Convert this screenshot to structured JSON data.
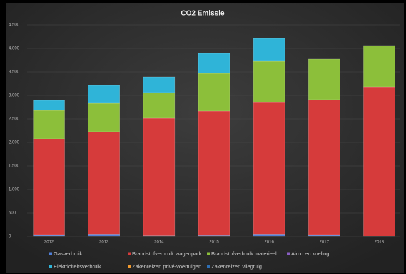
{
  "chart_data": {
    "type": "stacked_bar",
    "title": "CO2 Emissie",
    "categories": [
      "2012",
      "2013",
      "2014",
      "2015",
      "2016",
      "2017",
      "2018"
    ],
    "series": [
      {
        "name": "Gasverbruik",
        "color": "#4f7fd9",
        "values": [
          30,
          40,
          20,
          25,
          40,
          30,
          0
        ]
      },
      {
        "name": "Brandstofverbruik wagenpark",
        "color": "#d63b3b",
        "values": [
          2046,
          2187,
          2495,
          2642,
          2808,
          2879,
          3182
        ]
      },
      {
        "name": "Brandstofverbruik materieel",
        "color": "#8cbf3a",
        "values": [
          606,
          606,
          546,
          803,
          879,
          864,
          879
        ]
      },
      {
        "name": "Airco en koeling",
        "color": "#8a5fc4",
        "values": [
          0,
          0,
          0,
          0,
          0,
          0,
          0
        ]
      },
      {
        "name": "Elektriciteitsverbruik",
        "color": "#2fb4d8",
        "values": [
          212,
          379,
          333,
          424,
          485,
          0,
          0
        ]
      },
      {
        "name": "Zakenreizen privé-voertuigen",
        "color": "#f29a2e",
        "values": [
          0,
          0,
          0,
          0,
          0,
          0,
          0
        ]
      },
      {
        "name": "Zakenreizen vliegtuig",
        "color": "#2e6fb5",
        "values": [
          0,
          0,
          0,
          0,
          0,
          0,
          0
        ]
      }
    ],
    "ylim": [
      0,
      4500
    ],
    "yticks": [
      0,
      500,
      {
        "value": 1000,
        "label": "1.000"
      },
      {
        "value": 1500,
        "label": "1.500"
      },
      {
        "value": 2000,
        "label": "2.000"
      },
      {
        "value": 2500,
        "label": "2.500"
      },
      {
        "value": 3000,
        "label": "3.000"
      },
      {
        "value": 3500,
        "label": "3.500"
      },
      {
        "value": 4000,
        "label": "4.000"
      },
      {
        "value": 4500,
        "label": "4.500"
      }
    ],
    "grid": true
  }
}
